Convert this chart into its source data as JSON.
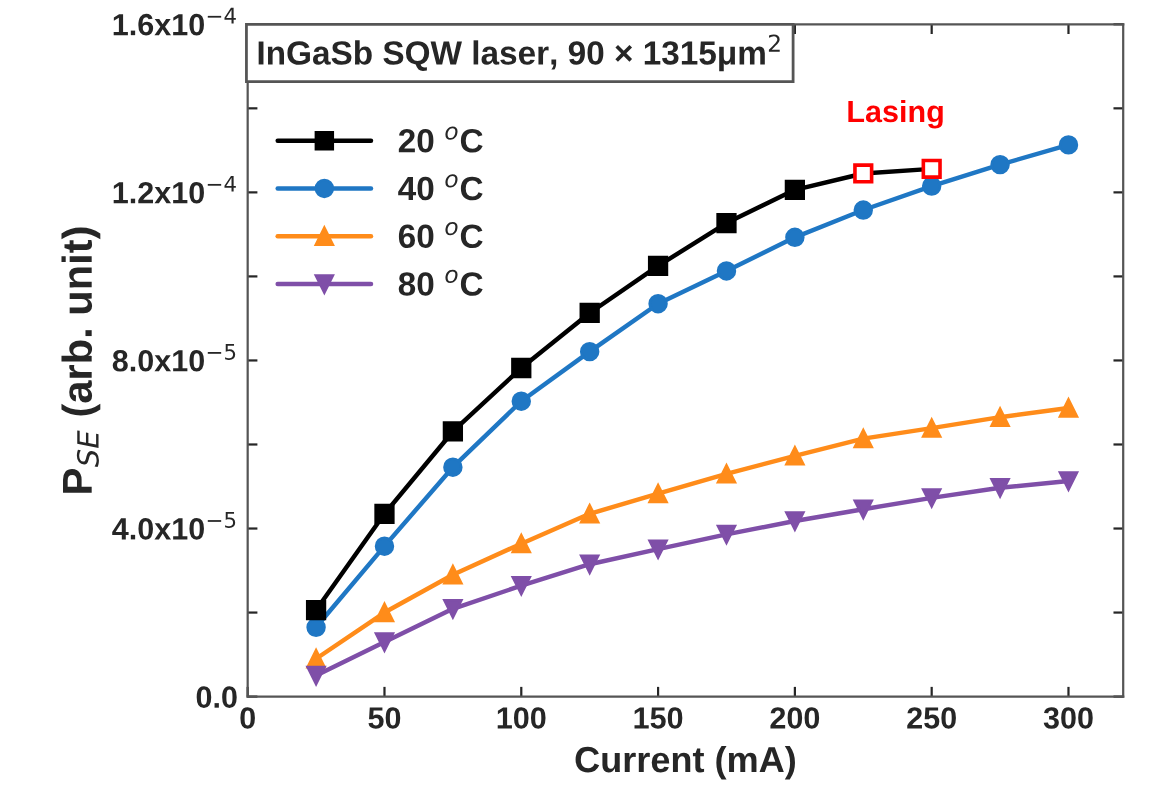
{
  "chart_data": {
    "type": "line",
    "title": "InGaSb SQW laser, 90 × 1315μm$^{2}$",
    "xlabel": "Current (mA)",
    "ylabel": "P$_{SE}$ (arb. unit)",
    "x": [
      25,
      50,
      75,
      100,
      125,
      150,
      175,
      200,
      225,
      250,
      275,
      300
    ],
    "series": [
      {
        "name": "20 $^{o}$C",
        "color": "#000000",
        "marker": "square",
        "colors": [
          "#000000",
          "#000000",
          "#000000",
          "#000000",
          "#000000",
          "#000000",
          "#000000",
          "#000000",
          "#ff0000",
          "#ff0000",
          null,
          null
        ],
        "values": [
          2.06e-05,
          4.35e-05,
          6.31e-05,
          7.82e-05,
          9.13e-05,
          0.0001025,
          0.0001127,
          0.0001206,
          0.0001245,
          0.0001256,
          null,
          null
        ]
      },
      {
        "name": "40 $^{o}$C",
        "color": "#1f77c4",
        "marker": "circle",
        "values": [
          1.65e-05,
          3.58e-05,
          5.46e-05,
          7.03e-05,
          8.21e-05,
          9.35e-05,
          0.0001013,
          0.0001093,
          0.0001158,
          0.0001215,
          0.0001266,
          0.0001313
        ]
      },
      {
        "name": "60 $^{o}$C",
        "color": "#ff8c1a",
        "marker": "triangle",
        "values": [
          9e-06,
          2e-05,
          2.9e-05,
          3.64e-05,
          4.35e-05,
          4.83e-05,
          5.3e-05,
          5.73e-05,
          6.14e-05,
          6.39e-05,
          6.65e-05,
          6.87e-05
        ]
      },
      {
        "name": "80 $^{o}$C",
        "color": "#7f4fa8",
        "marker": "triangle_down",
        "values": [
          5e-06,
          1.3e-05,
          2.09e-05,
          2.64e-05,
          3.15e-05,
          3.51e-05,
          3.86e-05,
          4.18e-05,
          4.46e-05,
          4.73e-05,
          4.97e-05,
          5.13e-05
        ]
      }
    ],
    "annotations": [
      "Lasing"
    ],
    "xlim": [
      0,
      320
    ],
    "ylim": [
      0,
      0.00016
    ],
    "xticks": [
      0,
      50,
      100,
      150,
      200,
      250,
      300
    ],
    "yticks": [
      {
        "value": 0,
        "label": "0.0"
      },
      {
        "value": 2e-05,
        "label": null
      },
      {
        "value": 4e-05,
        "label": "4.0x10$^{−5}$"
      },
      {
        "value": 6e-05,
        "label": null
      },
      {
        "value": 8e-05,
        "label": "8.0x10$^{−5}$"
      },
      {
        "value": 0.0001,
        "label": null
      },
      {
        "value": 0.00012,
        "label": "1.2x10$^{−4}$"
      },
      {
        "value": 0.00014,
        "label": null
      },
      {
        "value": 0.00016,
        "label": "1.6x10$^{−4}$"
      }
    ],
    "legend": "top left",
    "grid": false,
    "line_style": "solid"
  }
}
